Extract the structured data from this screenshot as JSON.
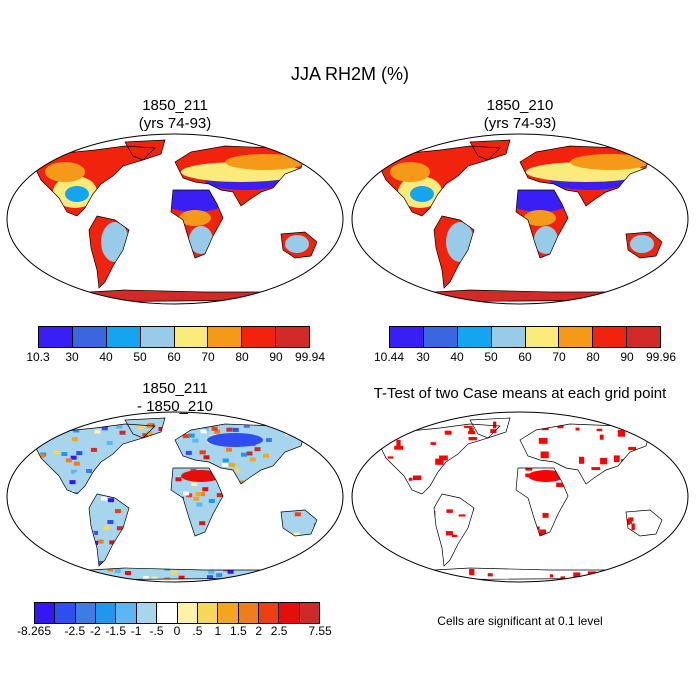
{
  "title": "JJA RH2M (%)",
  "panels": [
    {
      "title1": "1850_211",
      "title2": "(yrs 74-93)"
    },
    {
      "title1": "1850_210",
      "title2": "(yrs 74-93)"
    },
    {
      "title1": "1850_211",
      "title2": "- 1850_210"
    },
    {
      "title1": "T-Test of two Case means at each grid point"
    }
  ],
  "colorbar1": {
    "colors": [
      "#3a1ff5",
      "#3a67e0",
      "#14a5f0",
      "#98cbe8",
      "#fbeb7b",
      "#f59a18",
      "#f2230d",
      "#d22a27"
    ],
    "labels": [
      "10.3",
      "30",
      "40",
      "50",
      "60",
      "70",
      "80",
      "90",
      "99.94"
    ]
  },
  "colorbar2": {
    "colors": [
      "#3a1ff5",
      "#3a67e0",
      "#14a5f0",
      "#98cbe8",
      "#fbeb7b",
      "#f59a18",
      "#f2230d",
      "#d22a27"
    ],
    "labels": [
      "10.44",
      "30",
      "40",
      "50",
      "60",
      "70",
      "80",
      "90",
      "99.96"
    ]
  },
  "colorbar3": {
    "colors": [
      "#3616f5",
      "#2f4ef2",
      "#3c7ce5",
      "#1e97ef",
      "#5cb7f0",
      "#a7d5ee",
      "#ffffff",
      "#fdf3a8",
      "#f6d859",
      "#f4a51d",
      "#f07d16",
      "#ef3e12",
      "#e40f0d",
      "#cf2a2a"
    ],
    "labels": [
      "-8.265",
      "-2.5",
      "-2",
      "-1.5",
      "-1",
      "-.5",
      "0",
      ".5",
      "1",
      "1.5",
      "2",
      "2.5",
      "7.55"
    ]
  },
  "note": "Cells are significant at 0.1 level",
  "colors": {
    "significant": "#ff0000",
    "land_outline": "#000000"
  }
}
